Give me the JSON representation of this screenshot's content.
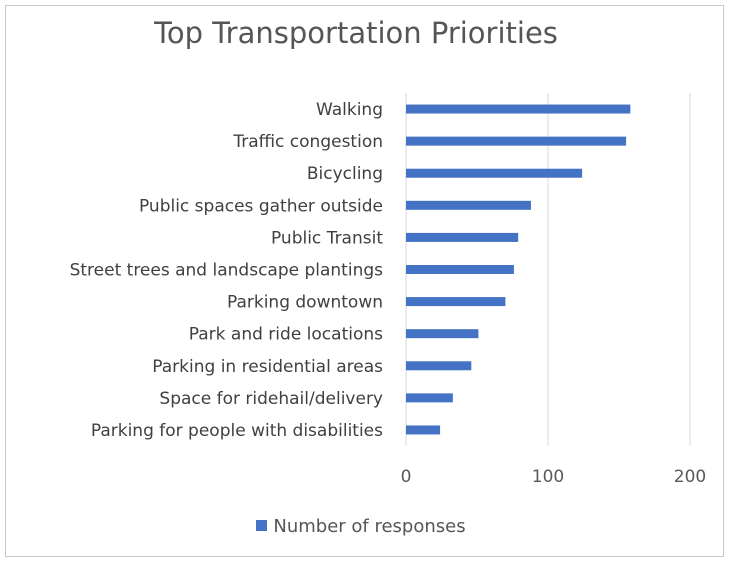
{
  "chart_data": {
    "type": "bar",
    "orientation": "horizontal",
    "title": "Top Transportation Priorities",
    "categories": [
      "Walking",
      "Traffic congestion",
      "Bicycling",
      "Public spaces gather outside",
      "Public Transit",
      "Street trees and landscape plantings",
      "Parking downtown",
      "Park and ride locations",
      "Parking in residential areas",
      "Space for ridehail/delivery",
      "Parking for people with disabilities"
    ],
    "series": [
      {
        "name": "Number of responses",
        "values": [
          158,
          155,
          124,
          88,
          79,
          76,
          70,
          51,
          46,
          33,
          24
        ]
      }
    ],
    "xlim": [
      0,
      200
    ],
    "x_ticks": [
      "0",
      "100",
      "200"
    ],
    "grid": "vertical",
    "legend": "bottom",
    "bar_color": "#4472c4"
  }
}
